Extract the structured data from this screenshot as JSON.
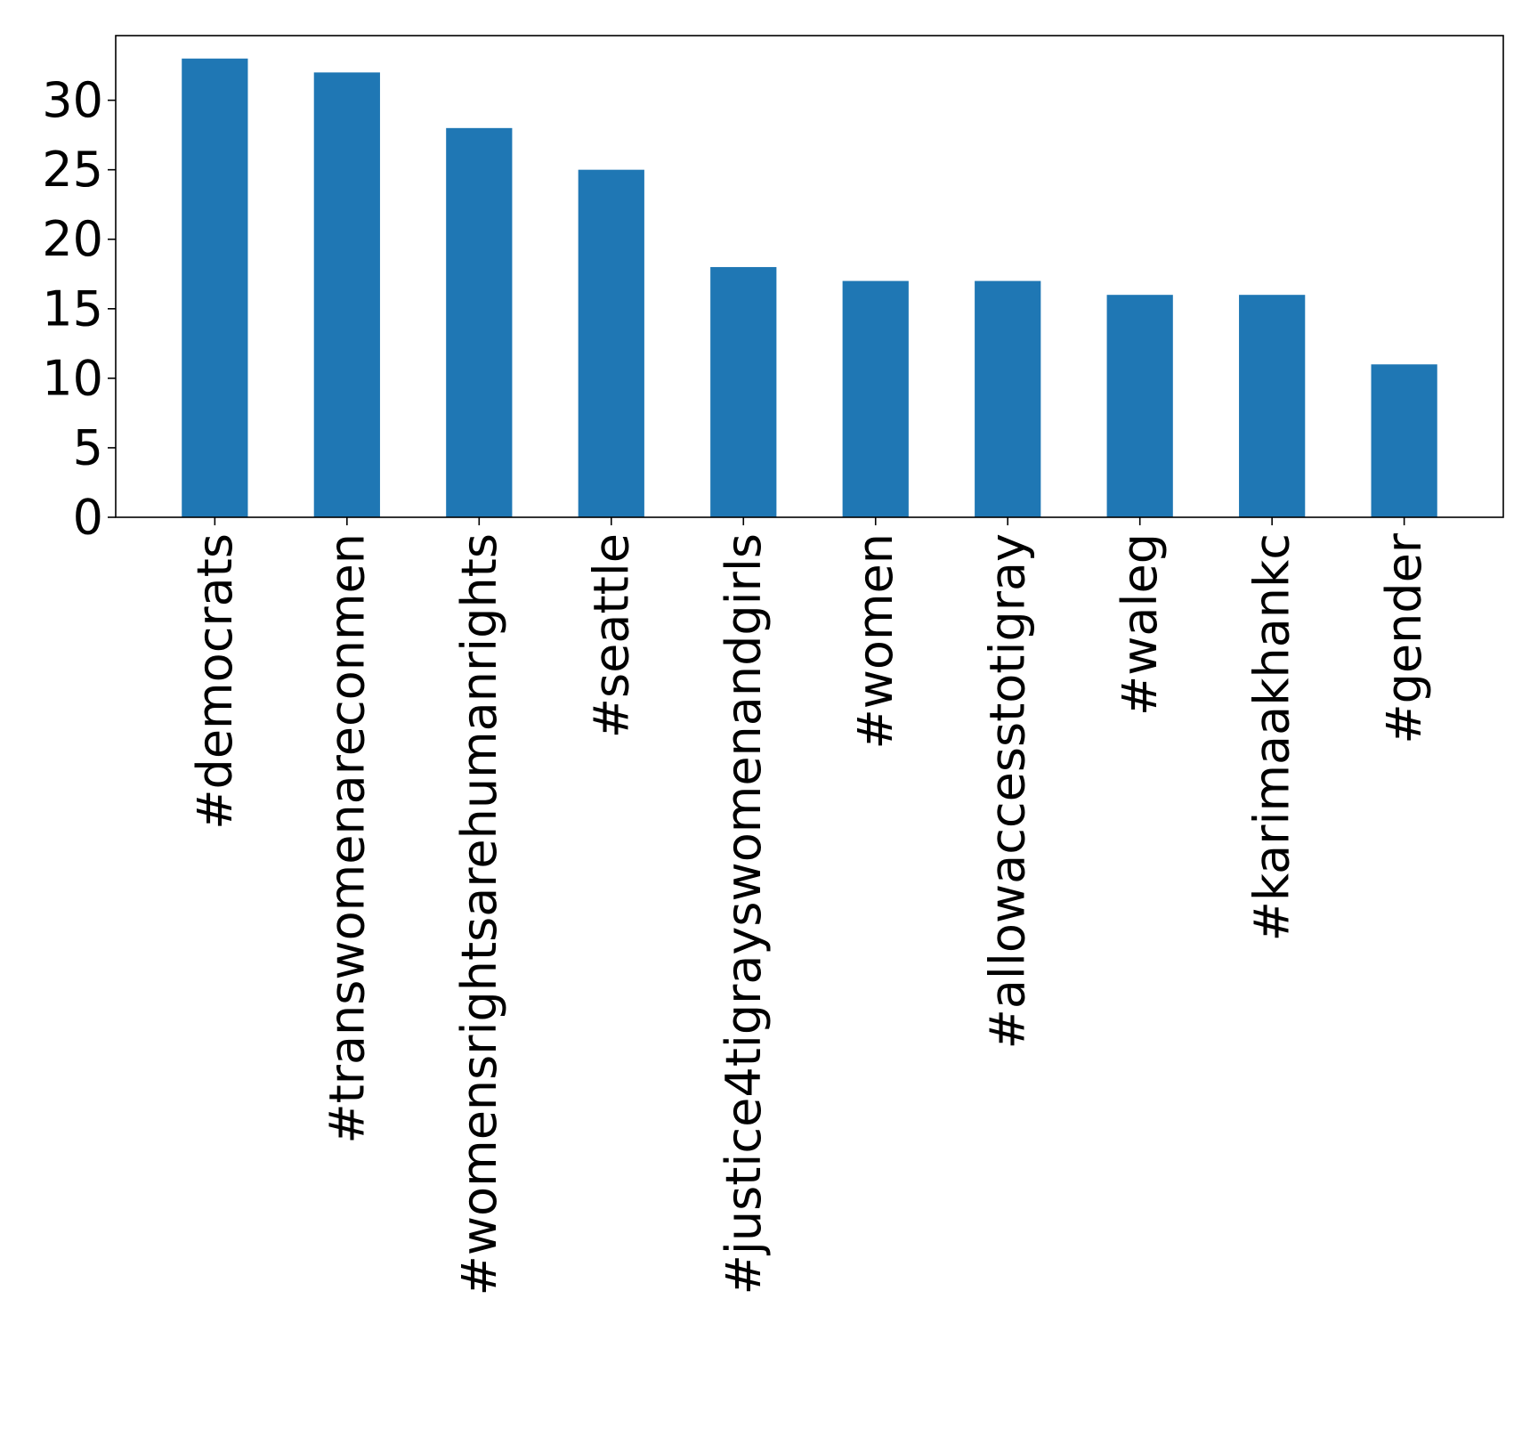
{
  "chart_data": {
    "type": "bar",
    "title": "",
    "xlabel": "",
    "ylabel": "",
    "categories": [
      "#democrats",
      "#transwomenareconmen",
      "#womensrightsarehumanrights",
      "#seattle",
      "#justice4tigrayswomenandgirls",
      "#women",
      "#allowaccesstotigray",
      "#waleg",
      "#karimaakhankc",
      "#gender"
    ],
    "values": [
      33,
      32,
      28,
      25,
      18,
      17,
      17,
      16,
      16,
      11
    ],
    "ylim": [
      0,
      34.65
    ],
    "yticks": [
      0,
      5,
      10,
      15,
      20,
      25,
      30
    ],
    "bar_color": "#1f77b4",
    "grid": false,
    "legend": "none"
  }
}
